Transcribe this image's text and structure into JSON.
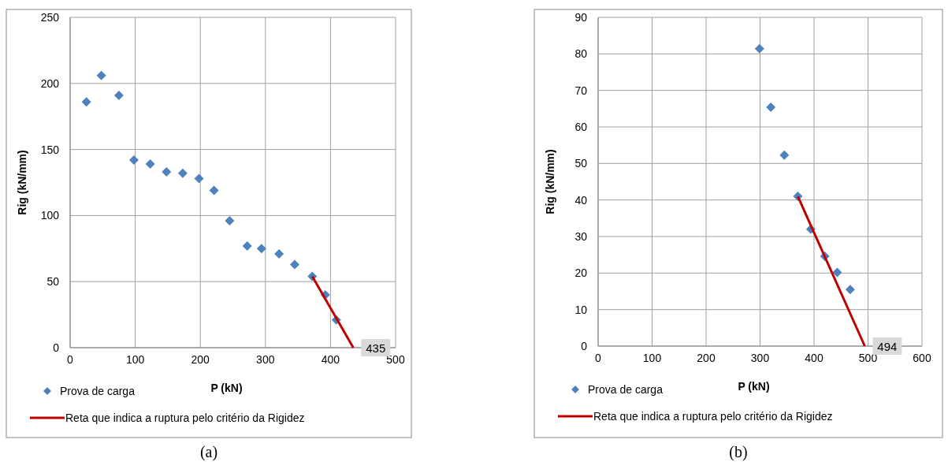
{
  "chart_data": [
    {
      "type": "scatter",
      "xlabel": "P (kN)",
      "ylabel": "Rig (kN/mm)",
      "xlim": [
        0,
        500
      ],
      "xticks": [
        0,
        100,
        200,
        300,
        400,
        500
      ],
      "ylim": [
        0,
        250
      ],
      "yticks": [
        0,
        50,
        100,
        150,
        200,
        250
      ],
      "grid": true,
      "legend": "bottom",
      "series": [
        {
          "name": "Prova de carga",
          "marker": "diamond",
          "color": "#4f81bd",
          "x": [
            25,
            48,
            75,
            98,
            123,
            148,
            173,
            198,
            221,
            245,
            272,
            294,
            321,
            345,
            372,
            392,
            409
          ],
          "values": [
            186,
            206,
            191,
            142,
            139,
            133,
            132,
            128,
            119,
            96,
            77,
            75,
            71,
            63,
            54,
            40,
            21
          ]
        },
        {
          "name": "Reta que indica a ruptura pelo critério da Rigidez",
          "type": "line",
          "marker": "none",
          "line_style": "solid",
          "color": "#c00000",
          "x": [
            372,
            435
          ],
          "values": [
            54,
            0
          ]
        }
      ],
      "annotations": [
        {
          "text": "435",
          "x": 435,
          "y": 0
        },
        "(a)"
      ]
    },
    {
      "type": "scatter",
      "xlabel": "P (kN)",
      "ylabel": "Rig (kN/mm)",
      "xlim": [
        0,
        600
      ],
      "xticks": [
        0,
        100,
        200,
        300,
        400,
        500,
        600
      ],
      "ylim": [
        0,
        90
      ],
      "yticks": [
        0,
        10,
        20,
        30,
        40,
        50,
        60,
        70,
        80,
        90
      ],
      "grid": true,
      "legend": "bottom",
      "series": [
        {
          "name": "Prova de carga",
          "marker": "diamond",
          "color": "#4f81bd",
          "x": [
            299,
            320,
            345,
            370,
            394,
            420,
            443,
            467
          ],
          "values": [
            81.4,
            65.4,
            52.3,
            41,
            32,
            24.6,
            20.2,
            15.5
          ]
        },
        {
          "name": "Reta que indica a ruptura pelo critério da Rigidez",
          "type": "line",
          "marker": "none",
          "line_style": "solid",
          "color": "#c00000",
          "x": [
            370,
            494
          ],
          "values": [
            41,
            0
          ]
        }
      ],
      "annotations": [
        {
          "text": "494",
          "x": 494,
          "y": 0
        },
        "(b)"
      ]
    }
  ]
}
